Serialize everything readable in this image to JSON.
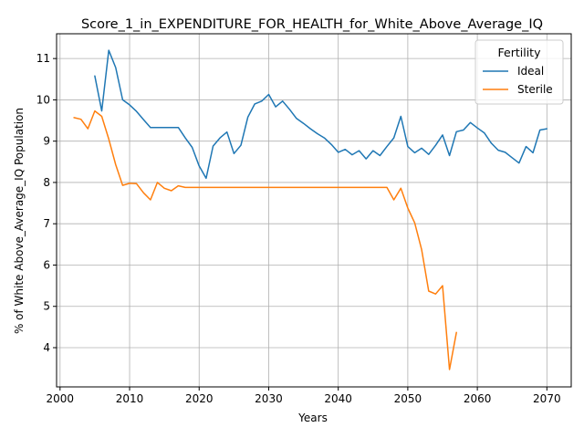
{
  "chart_data": {
    "type": "line",
    "title": "Score_1_in_EXPENDITURE_FOR_HEALTH_for_White_Above_Average_IQ",
    "xlabel": "Years",
    "ylabel": "% of White Above_Average_IQ Population",
    "xlim": [
      1999.5,
      2073.5
    ],
    "ylim": [
      3.05,
      11.6
    ],
    "xticks": [
      2000,
      2010,
      2020,
      2030,
      2040,
      2050,
      2060,
      2070
    ],
    "yticks": [
      4,
      5,
      6,
      7,
      8,
      9,
      10,
      11
    ],
    "grid": true,
    "legend": {
      "title": "Fertility",
      "placement": "top-right"
    },
    "series": [
      {
        "name": "Ideal",
        "color": "#1f77b4",
        "x": [
          2005,
          2006,
          2007,
          2008,
          2009,
          2010,
          2011,
          2012,
          2013,
          2014,
          2015,
          2016,
          2017,
          2018,
          2019,
          2020,
          2021,
          2022,
          2023,
          2024,
          2025,
          2026,
          2027,
          2028,
          2029,
          2030,
          2031,
          2032,
          2033,
          2034,
          2035,
          2036,
          2037,
          2038,
          2039,
          2040,
          2041,
          2042,
          2043,
          2044,
          2045,
          2046,
          2047,
          2048,
          2049,
          2050,
          2051,
          2052,
          2053,
          2054,
          2055,
          2056,
          2057,
          2058,
          2059,
          2060,
          2061,
          2062,
          2063,
          2064,
          2065,
          2066,
          2067,
          2068,
          2069,
          2070
        ],
        "y": [
          10.58,
          9.73,
          11.2,
          10.78,
          10.0,
          9.88,
          9.72,
          9.52,
          9.33,
          9.33,
          9.33,
          9.33,
          9.33,
          9.08,
          8.85,
          8.4,
          8.1,
          8.88,
          9.08,
          9.22,
          8.7,
          8.9,
          9.58,
          9.9,
          9.97,
          10.13,
          9.83,
          9.97,
          9.77,
          9.55,
          9.43,
          9.3,
          9.18,
          9.08,
          8.92,
          8.73,
          8.8,
          8.67,
          8.77,
          8.57,
          8.77,
          8.65,
          8.87,
          9.08,
          9.6,
          8.87,
          8.72,
          8.83,
          8.68,
          8.9,
          9.15,
          8.65,
          9.23,
          9.27,
          9.45,
          9.32,
          9.2,
          8.95,
          8.78,
          8.73,
          8.6,
          8.47,
          8.87,
          8.72,
          9.27,
          9.3
        ]
      },
      {
        "name": "Sterile",
        "color": "#ff7f0e",
        "x": [
          2002,
          2003,
          2004,
          2005,
          2006,
          2007,
          2008,
          2009,
          2010,
          2011,
          2012,
          2013,
          2014,
          2015,
          2016,
          2017,
          2018,
          2019,
          2020,
          2021,
          2022,
          2023,
          2024,
          2025,
          2026,
          2027,
          2028,
          2029,
          2030,
          2031,
          2032,
          2033,
          2034,
          2035,
          2036,
          2037,
          2038,
          2039,
          2040,
          2041,
          2042,
          2043,
          2044,
          2045,
          2046,
          2047,
          2048,
          2049,
          2050,
          2051,
          2052,
          2053,
          2054,
          2055,
          2056,
          2057
        ],
        "y": [
          9.57,
          9.53,
          9.3,
          9.73,
          9.6,
          9.05,
          8.43,
          7.93,
          7.98,
          7.97,
          7.75,
          7.58,
          8.0,
          7.86,
          7.8,
          7.92,
          7.88,
          7.88,
          7.88,
          7.88,
          7.88,
          7.88,
          7.88,
          7.88,
          7.88,
          7.88,
          7.88,
          7.88,
          7.88,
          7.88,
          7.88,
          7.88,
          7.88,
          7.88,
          7.88,
          7.88,
          7.88,
          7.88,
          7.88,
          7.88,
          7.88,
          7.88,
          7.88,
          7.88,
          7.88,
          7.88,
          7.58,
          7.86,
          7.38,
          7.02,
          6.37,
          5.37,
          5.3,
          5.5,
          3.47,
          4.37
        ]
      }
    ]
  }
}
